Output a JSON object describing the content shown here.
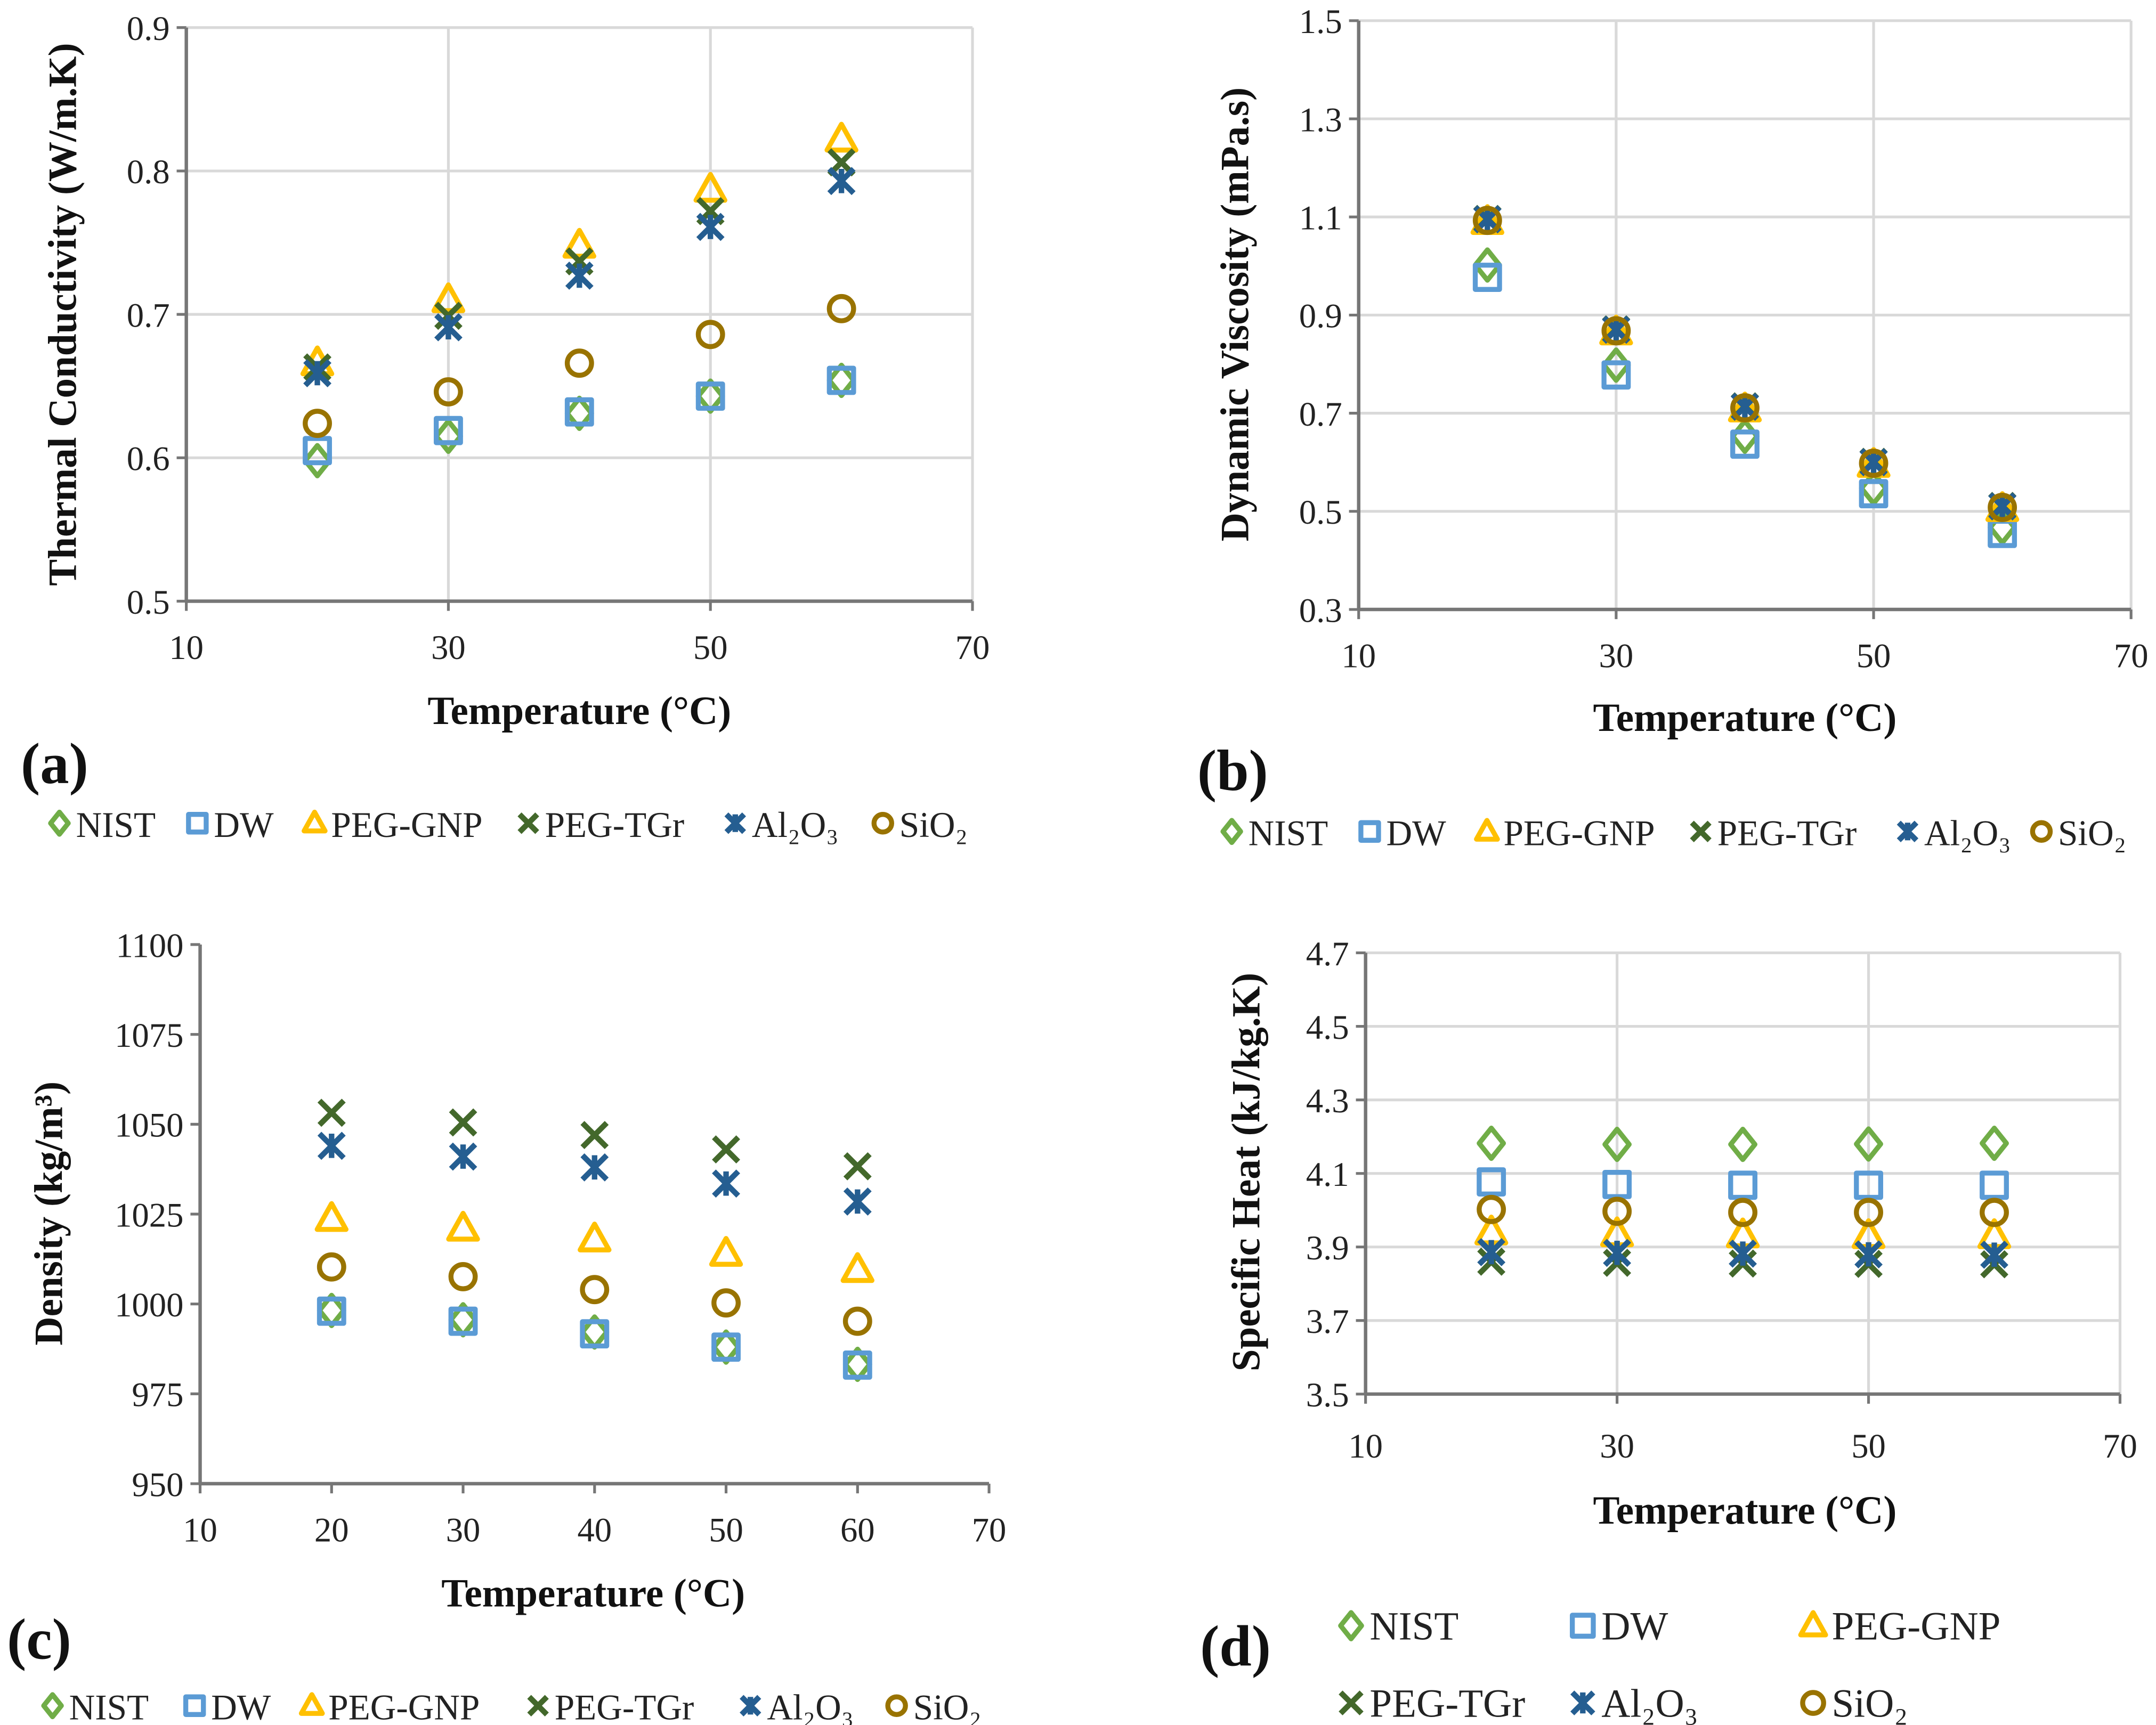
{
  "colors": {
    "NIST": "#70AD47",
    "DW": "#5B9BD5",
    "PEG-GNP": "#FFC000",
    "PEG-TGr": "#43682B",
    "Al2O3": "#255E91",
    "SiO2": "#997300",
    "grid": "#D9D9D9",
    "axis": "#767676"
  },
  "chart_data": [
    {
      "type": "scatter",
      "panel_label": "(a)",
      "xlabel": "Temperature (°C)",
      "ylabel": "Thermal Conductivity (W/m.K)",
      "xlim": [
        10,
        70
      ],
      "ylim": [
        0.5,
        0.9
      ],
      "xticks": [
        10,
        30,
        50,
        70
      ],
      "yticks": [
        0.5,
        0.6,
        0.7,
        0.8,
        0.9
      ],
      "ytick_labels": [
        "0.5",
        "0.6",
        "0.7",
        "0.8",
        "0.9"
      ],
      "grid": "both",
      "legend": "bottom",
      "x": [
        20,
        30,
        40,
        50,
        60
      ],
      "series": [
        {
          "name": "NIST",
          "marker": "diamond",
          "values": [
            0.598,
            0.615,
            0.631,
            0.643,
            0.654
          ]
        },
        {
          "name": "DW",
          "marker": "square",
          "values": [
            0.605,
            0.619,
            0.632,
            0.643,
            0.654
          ]
        },
        {
          "name": "PEG-GNP",
          "marker": "triangle",
          "values": [
            0.666,
            0.71,
            0.748,
            0.787,
            0.822
          ]
        },
        {
          "name": "PEG-TGr",
          "marker": "x",
          "values": [
            0.663,
            0.699,
            0.737,
            0.772,
            0.806
          ]
        },
        {
          "name": "Al₂O₃",
          "marker": "star",
          "values": [
            0.659,
            0.691,
            0.727,
            0.761,
            0.793
          ]
        },
        {
          "name": "SiO₂",
          "marker": "circle",
          "values": [
            0.624,
            0.646,
            0.666,
            0.686,
            0.704
          ]
        }
      ]
    },
    {
      "type": "scatter",
      "panel_label": "(b)",
      "xlabel": "Temperature (°C)",
      "ylabel": "Dynamic Viscosity (mPa.s)",
      "xlim": [
        10,
        70
      ],
      "ylim": [
        0.3,
        1.5
      ],
      "xticks": [
        10,
        30,
        50,
        70
      ],
      "yticks": [
        0.3,
        0.5,
        0.7,
        0.9,
        1.1,
        1.3,
        1.5
      ],
      "ytick_labels": [
        "0.3",
        "0.5",
        "0.7",
        "0.9",
        "1.1",
        "1.3",
        "1.5"
      ],
      "grid": "both",
      "legend": "bottom",
      "x": [
        20,
        30,
        40,
        50,
        60
      ],
      "series": [
        {
          "name": "NIST",
          "marker": "diamond",
          "values": [
            1.002,
            0.798,
            0.653,
            0.547,
            0.467
          ]
        },
        {
          "name": "DW",
          "marker": "square",
          "values": [
            0.977,
            0.778,
            0.637,
            0.536,
            0.455
          ]
        },
        {
          "name": "PEG-GNP",
          "marker": "triangle",
          "values": [
            1.09,
            0.865,
            0.708,
            0.595,
            0.505
          ]
        },
        {
          "name": "PEG-TGr",
          "marker": "x",
          "values": [
            1.096,
            0.871,
            0.714,
            0.601,
            0.511
          ]
        },
        {
          "name": "Al₂O₃",
          "marker": "star",
          "values": [
            1.095,
            0.87,
            0.713,
            0.6,
            0.51
          ]
        },
        {
          "name": "SiO₂",
          "marker": "circle",
          "values": [
            1.093,
            0.868,
            0.711,
            0.598,
            0.508
          ]
        }
      ]
    },
    {
      "type": "scatter",
      "panel_label": "(c)",
      "xlabel": "Temperature (°C)",
      "ylabel": "Density (kg/m³)",
      "xlim": [
        10,
        70
      ],
      "ylim": [
        950,
        1100
      ],
      "xticks": [
        10,
        20,
        30,
        40,
        50,
        60,
        70
      ],
      "yticks": [
        950,
        975,
        1000,
        1025,
        1050,
        1075,
        1100
      ],
      "ytick_labels": [
        "950",
        "975",
        "1000",
        "1025",
        "1050",
        "1075",
        "1100"
      ],
      "grid": "none",
      "legend": "bottom",
      "x": [
        20,
        30,
        40,
        50,
        60
      ],
      "series": [
        {
          "name": "NIST",
          "marker": "diamond",
          "values": [
            998.2,
            995.6,
            992.2,
            988.0,
            983.2
          ]
        },
        {
          "name": "DW",
          "marker": "square",
          "values": [
            998.0,
            995.2,
            991.7,
            988.0,
            983.0
          ]
        },
        {
          "name": "PEG-GNP",
          "marker": "triangle",
          "values": [
            1023.7,
            1021.0,
            1018.0,
            1014.0,
            1009.5
          ]
        },
        {
          "name": "PEG-TGr",
          "marker": "x",
          "values": [
            1053.2,
            1050.5,
            1047.0,
            1043.0,
            1038.3
          ]
        },
        {
          "name": "Al₂O₃",
          "marker": "star",
          "values": [
            1044.0,
            1041.0,
            1038.0,
            1033.5,
            1028.5
          ]
        },
        {
          "name": "SiO₂",
          "marker": "circle",
          "values": [
            1010.3,
            1007.6,
            1004.0,
            1000.3,
            995.2
          ]
        }
      ]
    },
    {
      "type": "scatter",
      "panel_label": "(d)",
      "xlabel": "Temperature (°C)",
      "ylabel": "Specific Heat (kJ/kg.K)",
      "xlim": [
        10,
        70
      ],
      "ylim": [
        3.5,
        4.7
      ],
      "xticks": [
        10,
        30,
        50,
        70
      ],
      "yticks": [
        3.5,
        3.7,
        3.9,
        4.1,
        4.3,
        4.5,
        4.7
      ],
      "ytick_labels": [
        "3.5",
        "3.7",
        "3.9",
        "4.1",
        "4.3",
        "4.5",
        "4.7"
      ],
      "grid": "both",
      "legend": "bottom-two-rows",
      "x": [
        20,
        30,
        40,
        50,
        60
      ],
      "series": [
        {
          "name": "NIST",
          "marker": "diamond",
          "values": [
            4.182,
            4.179,
            4.179,
            4.18,
            4.182
          ]
        },
        {
          "name": "DW",
          "marker": "square",
          "values": [
            4.077,
            4.07,
            4.068,
            4.068,
            4.068
          ]
        },
        {
          "name": "PEG-GNP",
          "marker": "triangle",
          "values": [
            3.94,
            3.935,
            3.932,
            3.93,
            3.93
          ]
        },
        {
          "name": "PEG-TGr",
          "marker": "x",
          "values": [
            3.86,
            3.857,
            3.855,
            3.854,
            3.853
          ]
        },
        {
          "name": "Al₂O₃",
          "marker": "star",
          "values": [
            3.886,
            3.884,
            3.882,
            3.88,
            3.879
          ]
        },
        {
          "name": "SiO₂",
          "marker": "circle",
          "values": [
            4.002,
            3.997,
            3.994,
            3.994,
            3.994
          ]
        }
      ]
    }
  ]
}
